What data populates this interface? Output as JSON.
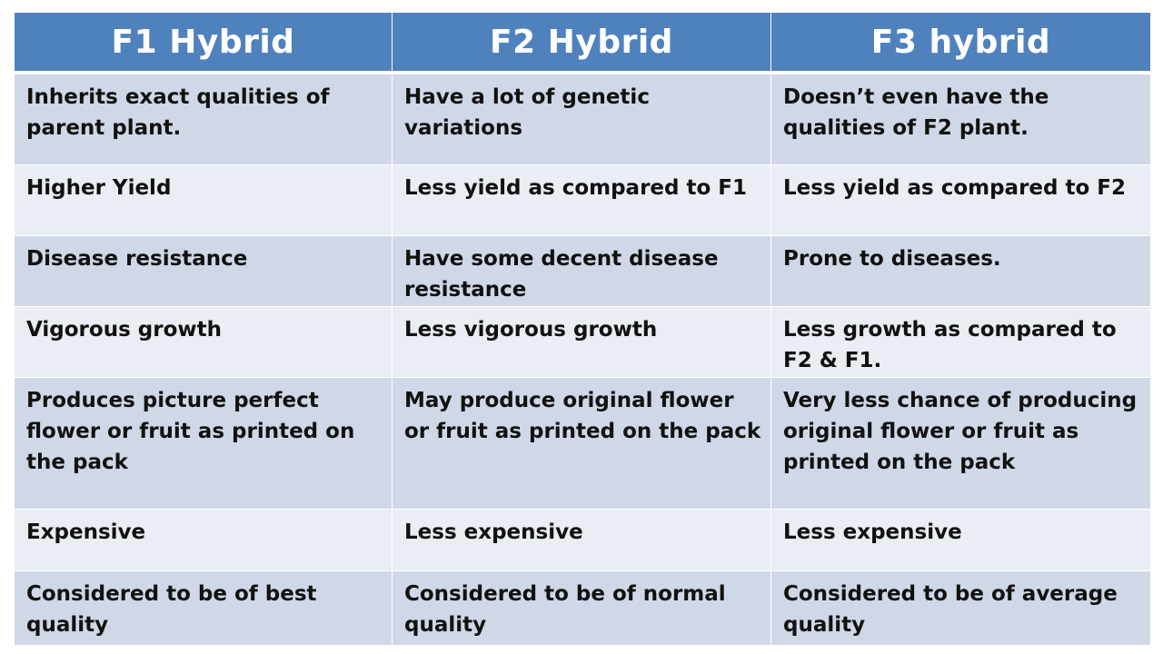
{
  "table": {
    "headers": [
      "F1 Hybrid",
      "F2 Hybrid",
      "F3 hybrid"
    ],
    "rows": [
      [
        "Inherits exact qualities of parent plant.",
        "Have a lot of genetic variations",
        "Doesn’t even have the qualities of F2 plant."
      ],
      [
        "Higher Yield",
        "Less yield as compared to F1",
        "Less yield as compared to F2"
      ],
      [
        "Disease resistance",
        "Have some decent disease resistance",
        "Prone to diseases."
      ],
      [
        "Vigorous growth",
        "Less vigorous growth",
        "Less growth as compared to F2 & F1."
      ],
      [
        "Produces picture perfect flower or fruit as printed on the pack",
        "May produce original flower or fruit as printed on the pack",
        "Very less chance of producing original flower or fruit as printed on the pack"
      ],
      [
        "Expensive",
        "Less expensive",
        "Less expensive"
      ],
      [
        "Considered to be of best quality",
        "Considered to be of normal quality",
        "Considered to be of average quality"
      ]
    ]
  },
  "colors": {
    "header_bg": "#4f81bd",
    "row_odd_bg": "#d0d8e8",
    "row_even_bg": "#e9edf4",
    "text": "#111111"
  }
}
